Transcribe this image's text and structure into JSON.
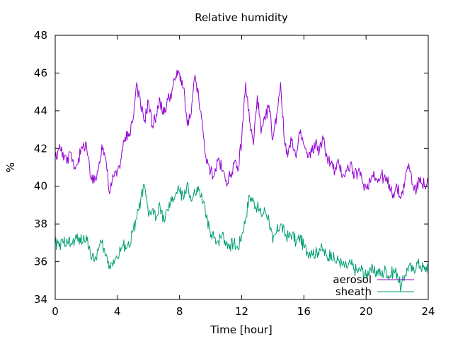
{
  "chart_data": {
    "type": "line",
    "title": "Relative humidity",
    "xlabel": "Time [hour]",
    "ylabel": "%",
    "xlim": [
      0,
      24
    ],
    "ylim": [
      34,
      48
    ],
    "xticks": [
      0,
      4,
      8,
      12,
      16,
      20,
      24
    ],
    "yticks": [
      34,
      36,
      38,
      40,
      42,
      44,
      46,
      48
    ],
    "grid": false,
    "legend_position": "bottom-right",
    "series": [
      {
        "name": "aerosol",
        "color": "#9400d3",
        "x": [
          0,
          0.25,
          0.5,
          0.75,
          1,
          1.25,
          1.5,
          1.75,
          2,
          2.25,
          2.5,
          2.75,
          3,
          3.25,
          3.5,
          3.75,
          4,
          4.25,
          4.5,
          4.75,
          5,
          5.25,
          5.5,
          5.75,
          6,
          6.25,
          6.5,
          6.75,
          7,
          7.25,
          7.5,
          7.75,
          8,
          8.25,
          8.5,
          8.75,
          9,
          9.25,
          9.5,
          9.75,
          10,
          10.25,
          10.5,
          10.75,
          11,
          11.25,
          11.5,
          11.75,
          12,
          12.25,
          12.5,
          12.75,
          13,
          13.25,
          13.5,
          13.75,
          14,
          14.25,
          14.5,
          14.75,
          15,
          15.25,
          15.5,
          15.75,
          16,
          16.25,
          16.5,
          16.75,
          17,
          17.25,
          17.5,
          17.75,
          18,
          18.25,
          18.5,
          18.75,
          19,
          19.25,
          19.5,
          19.75,
          20,
          20.25,
          20.5,
          20.75,
          21,
          21.25,
          21.5,
          21.75,
          22,
          22.25,
          22.5,
          22.75,
          23,
          23.25,
          23.5,
          23.75,
          24
        ],
        "y": [
          41.5,
          42.0,
          41.8,
          41.2,
          41.8,
          41.0,
          41.5,
          42.0,
          42.3,
          40.5,
          40.2,
          40.8,
          42.2,
          41.5,
          39.6,
          40.5,
          40.8,
          41.5,
          42.6,
          42.8,
          43.5,
          45.5,
          44.2,
          43.5,
          44.5,
          43.2,
          43.8,
          44.5,
          43.8,
          44.6,
          45.0,
          45.8,
          46.0,
          45.2,
          43.2,
          43.8,
          45.9,
          44.5,
          43.0,
          41.2,
          40.8,
          40.6,
          41.5,
          40.8,
          40.3,
          40.5,
          41.2,
          40.8,
          42.5,
          45.5,
          43.5,
          42.2,
          44.8,
          42.8,
          43.5,
          44.3,
          42.5,
          43.8,
          45.5,
          42.3,
          41.8,
          42.5,
          41.5,
          42.8,
          42.2,
          41.5,
          41.8,
          42.3,
          41.9,
          42.5,
          41.5,
          41.2,
          40.8,
          41.2,
          40.6,
          40.8,
          41.2,
          40.5,
          40.8,
          40.3,
          39.9,
          40.3,
          40.8,
          40.2,
          40.6,
          40.3,
          40.1,
          39.6,
          39.9,
          39.4,
          40.3,
          41.2,
          40.1,
          39.8,
          40.5,
          40.0,
          40.2
        ]
      },
      {
        "name": "sheath",
        "color": "#009e73",
        "x": [
          0,
          0.25,
          0.5,
          0.75,
          1,
          1.25,
          1.5,
          1.75,
          2,
          2.25,
          2.5,
          2.75,
          3,
          3.25,
          3.5,
          3.75,
          4,
          4.25,
          4.5,
          4.75,
          5,
          5.25,
          5.5,
          5.75,
          6,
          6.25,
          6.5,
          6.75,
          7,
          7.25,
          7.5,
          7.75,
          8,
          8.25,
          8.5,
          8.75,
          9,
          9.25,
          9.5,
          9.75,
          10,
          10.25,
          10.5,
          10.75,
          11,
          11.25,
          11.5,
          11.75,
          12,
          12.25,
          12.5,
          12.75,
          13,
          13.25,
          13.5,
          13.75,
          14,
          14.25,
          14.5,
          14.75,
          15,
          15.25,
          15.5,
          15.75,
          16,
          16.25,
          16.5,
          16.75,
          17,
          17.25,
          17.5,
          17.75,
          18,
          18.25,
          18.5,
          18.75,
          19,
          19.25,
          19.5,
          19.75,
          20,
          20.25,
          20.5,
          20.75,
          21,
          21.25,
          21.5,
          21.75,
          22,
          22.25,
          22.5,
          22.75,
          23,
          23.25,
          23.5,
          23.75,
          24
        ],
        "y": [
          37.0,
          36.8,
          37.0,
          37.2,
          36.9,
          37.1,
          37.3,
          37.0,
          37.4,
          36.5,
          36.0,
          36.6,
          37.0,
          36.3,
          35.8,
          36.1,
          36.2,
          36.7,
          36.9,
          36.8,
          37.6,
          38.3,
          39.3,
          40.0,
          38.4,
          38.8,
          38.3,
          38.9,
          38.2,
          38.7,
          39.2,
          39.6,
          39.8,
          39.3,
          40.2,
          39.2,
          39.6,
          39.8,
          39.1,
          38.5,
          37.3,
          37.3,
          37.1,
          37.5,
          37.0,
          36.9,
          37.0,
          36.7,
          37.4,
          38.3,
          39.5,
          39.2,
          38.9,
          38.5,
          38.7,
          38.3,
          37.0,
          37.6,
          38.0,
          37.5,
          37.3,
          37.5,
          37.0,
          37.3,
          36.8,
          36.5,
          36.6,
          36.4,
          36.7,
          36.6,
          36.2,
          36.5,
          36.0,
          36.1,
          35.8,
          35.7,
          35.9,
          35.6,
          35.5,
          35.6,
          35.2,
          35.7,
          35.4,
          35.5,
          35.3,
          35.6,
          35.2,
          35.5,
          35.4,
          34.6,
          35.3,
          35.8,
          35.5,
          35.9,
          35.8,
          35.6,
          35.8
        ]
      }
    ]
  }
}
